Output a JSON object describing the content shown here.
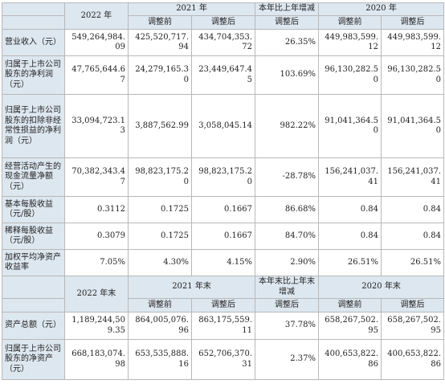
{
  "table1": {
    "header": {
      "col_2022": "2022 年",
      "col_2021": "2021 年",
      "col_change": "本年比上年增减",
      "col_2020": "2020 年",
      "sub_before": "调整前",
      "sub_after": "调整后"
    },
    "rows": [
      {
        "label": "营业收入（元）",
        "v2022": "549,264,984.09",
        "v2021_before": "425,520,717.94",
        "v2021_after": "434,704,353.72",
        "change": "26.35%",
        "v2020_before": "449,983,599.12",
        "v2020_after": "449,983,599.12"
      },
      {
        "label": "归属于上市公司股东的净利润（元）",
        "v2022": "47,765,644.67",
        "v2021_before": "24,279,165.30",
        "v2021_after": "23,449,647.45",
        "change": "103.69%",
        "v2020_before": "96,130,282.50",
        "v2020_after": "96,130,282.50"
      },
      {
        "label": "归属于上市公司股东的扣除非经常性损益的净利润（元）",
        "v2022": "33,094,723.13",
        "v2021_before": "3,887,562.99",
        "v2021_after": "3,058,045.14",
        "change": "982.22%",
        "v2020_before": "91,041,364.50",
        "v2020_after": "91,041,364.50"
      },
      {
        "label": "经营活动产生的现金流量净额（元）",
        "v2022": "70,382,343.47",
        "v2021_before": "98,823,175.20",
        "v2021_after": "98,823,175.20",
        "change": "-28.78%",
        "v2020_before": "156,241,037.41",
        "v2020_after": "156,241,037.41"
      },
      {
        "label": "基本每股收益（元/股）",
        "v2022": "0.3112",
        "v2021_before": "0.1725",
        "v2021_after": "0.1667",
        "change": "86.68%",
        "v2020_before": "0.84",
        "v2020_after": "0.84"
      },
      {
        "label": "稀释每股收益（元/股）",
        "v2022": "0.3079",
        "v2021_before": "0.1725",
        "v2021_after": "0.1667",
        "change": "84.70%",
        "v2020_before": "0.84",
        "v2020_after": "0.84"
      },
      {
        "label": "加权平均净资产收益率",
        "v2022": "7.05%",
        "v2021_before": "4.30%",
        "v2021_after": "4.15%",
        "change": "2.90%",
        "v2020_before": "26.51%",
        "v2020_after": "26.51%"
      }
    ]
  },
  "table2": {
    "header": {
      "col_2022": "2022 年末",
      "col_2021": "2021 年末",
      "col_change": "本年末比上年末增减",
      "col_2020": "2020 年末",
      "sub_before": "调整前",
      "sub_after": "调整后"
    },
    "rows": [
      {
        "label": "资产总额（元）",
        "v2022": "1,189,244,509.35",
        "v2021_before": "864,005,076.96",
        "v2021_after": "863,175,559.11",
        "change": "37.78%",
        "v2020_before": "658,267,502.95",
        "v2020_after": "658,267,502.95"
      },
      {
        "label": "归属于上市公司股东的净资产（元）",
        "v2022": "668,183,074.98",
        "v2021_before": "653,535,888.16",
        "v2021_after": "652,706,370.31",
        "change": "2.37%",
        "v2020_before": "400,653,822.86",
        "v2020_after": "400,653,822.86"
      }
    ]
  }
}
